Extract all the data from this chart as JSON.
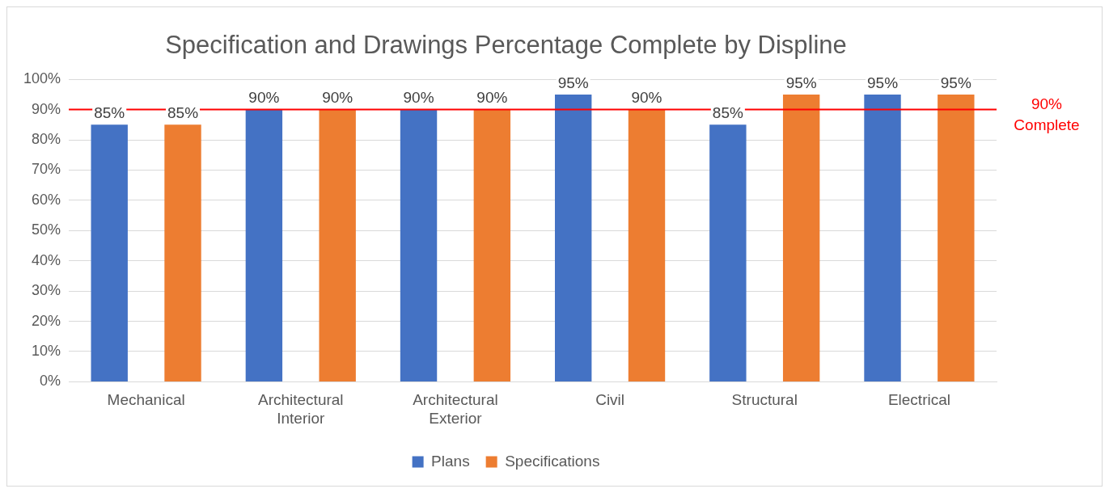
{
  "chart_data": {
    "type": "bar",
    "title": "Specification and Drawings Percentage Complete by Displine",
    "categories": [
      "Mechanical",
      "Architectural Interior",
      "Architectural Exterior",
      "Civil",
      "Structural",
      "Electrical"
    ],
    "series": [
      {
        "name": "Plans",
        "color": "#4472c4",
        "values": [
          85,
          90,
          90,
          95,
          85,
          95
        ],
        "value_labels": [
          "85%",
          "90%",
          "90%",
          "95%",
          "85%",
          "95%"
        ]
      },
      {
        "name": "Specifications",
        "color": "#ed7d31",
        "values": [
          85,
          90,
          90,
          90,
          95,
          95
        ],
        "value_labels": [
          "85%",
          "90%",
          "90%",
          "90%",
          "95%",
          "95%"
        ]
      }
    ],
    "ylim": [
      0,
      100
    ],
    "yticks": [
      {
        "value": 0,
        "label": "0%"
      },
      {
        "value": 10,
        "label": "10%"
      },
      {
        "value": 20,
        "label": "20%"
      },
      {
        "value": 30,
        "label": "30%"
      },
      {
        "value": 40,
        "label": "40%"
      },
      {
        "value": 50,
        "label": "50%"
      },
      {
        "value": 60,
        "label": "60%"
      },
      {
        "value": 70,
        "label": "70%"
      },
      {
        "value": 80,
        "label": "80%"
      },
      {
        "value": 90,
        "label": "90%"
      },
      {
        "value": 100,
        "label": "100%"
      }
    ],
    "grid": "y",
    "legend": "bottom",
    "ref_lines": [
      {
        "axis": "y",
        "value": 90,
        "label": "90% Complete",
        "color": "#ff0000"
      }
    ]
  }
}
